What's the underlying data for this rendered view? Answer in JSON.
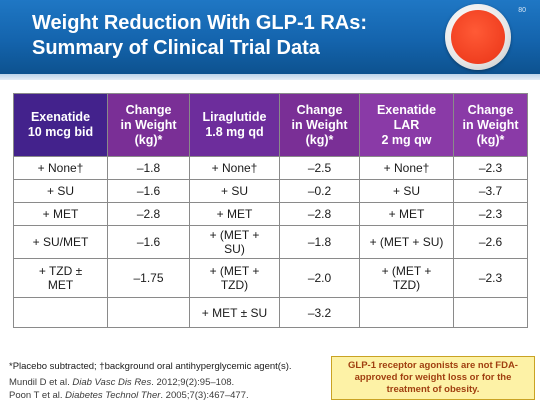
{
  "header": {
    "title_line1": "Weight Reduction With GLP-1 RAs:",
    "title_line2": "Summary of Clinical Trial Data",
    "page_number": "80"
  },
  "colors": {
    "header_blue": "#1464ad",
    "exenatide_purple": "#43228c",
    "liraglutide_purple": "#6d2d9c",
    "callout_fill": "#fdf2a6",
    "callout_text": "#a03f10"
  },
  "table": {
    "headers": [
      {
        "line1": "Exenatide",
        "line2": "10 mcg bid"
      },
      {
        "line1": "Change",
        "line2": "in Weight",
        "line3": "(kg)*"
      },
      {
        "line1": "Liraglutide",
        "line2": "1.8 mg qd"
      },
      {
        "line1": "Change",
        "line2": "in Weight",
        "line3": "(kg)*"
      },
      {
        "line1": "Exenatide",
        "line2": "LAR",
        "line3": "2 mg qw"
      },
      {
        "line1": "Change",
        "line2": "in Weight",
        "line3": "(kg)*"
      }
    ],
    "rows": [
      [
        "+ None†",
        "–1.8",
        "+ None†",
        "–2.5",
        "+ None†",
        "–2.3"
      ],
      [
        "+ SU",
        "–1.6",
        "+ SU",
        "–0.2",
        "+ SU",
        "–3.7"
      ],
      [
        "+ MET",
        "–2.8",
        "+ MET",
        "–2.8",
        "+ MET",
        "–2.3"
      ],
      [
        "+ SU/MET",
        "–1.6",
        "+ (MET + SU)",
        "–1.8",
        "+ (MET + SU)",
        "–2.6"
      ],
      [
        "+ TZD ± MET",
        "–1.75",
        "+ (MET + TZD)",
        "–2.0",
        "+ (MET + TZD)",
        "–2.3"
      ],
      [
        "",
        "",
        "+ MET ± SU",
        "–3.2",
        "",
        ""
      ]
    ]
  },
  "footnote": "*Placebo subtracted; †background oral antihyperglycemic agent(s).",
  "references": [
    {
      "authors": "Mundil D et al. ",
      "journal": "Diab Vasc Dis Res",
      "citation": ". 2012;9(2):95–108."
    },
    {
      "authors": "Poon T et al. ",
      "journal": "Diabetes Technol Ther",
      "citation": ". 2005;7(3):467–477."
    }
  ],
  "callout": "GLP-1 receptor agonists are not FDA-approved for weight loss or for the treatment of obesity."
}
